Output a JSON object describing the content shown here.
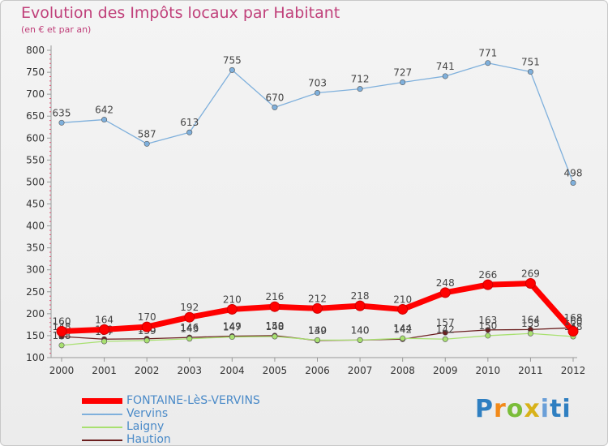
{
  "header": {
    "title": "Evolution des Impôts locaux par Habitant",
    "subtitle": "(en € et par an)"
  },
  "brand": {
    "letters": [
      "P",
      "r",
      "o",
      "x",
      "i",
      "t",
      "i"
    ]
  },
  "chart_data": {
    "type": "line",
    "title": "Evolution des Impôts locaux par Habitant",
    "subtitle": "(en € et par an)",
    "xlabel": "",
    "ylabel": "",
    "x": [
      "2000",
      "2001",
      "2002",
      "2003",
      "2004",
      "2005",
      "2006",
      "2007",
      "2008",
      "2009",
      "2010",
      "2011",
      "2012"
    ],
    "ylim": [
      100,
      800
    ],
    "yticks": [
      100,
      150,
      200,
      250,
      300,
      350,
      400,
      450,
      500,
      550,
      600,
      650,
      700,
      750,
      800
    ],
    "grid": false,
    "legend": "bottom-left",
    "series": [
      {
        "name": "Haution",
        "color": "#6b1f1f",
        "values": [
          148,
          142,
          143,
          146,
          149,
          150,
          139,
          140,
          142,
          157,
          163,
          164,
          168
        ]
      },
      {
        "name": "Laigny",
        "color": "#a8e070",
        "values": [
          128,
          137,
          139,
          143,
          147,
          148,
          140,
          140,
          144,
          142,
          150,
          155,
          148
        ]
      },
      {
        "name": "Vervins",
        "color": "#7fb0dc",
        "values": [
          635,
          642,
          587,
          613,
          755,
          670,
          703,
          712,
          727,
          741,
          771,
          751,
          498
        ]
      },
      {
        "name": "FONTAINE-LèS-VERVINS",
        "color": "#ff0000",
        "values": [
          160,
          164,
          170,
          192,
          210,
          216,
          212,
          218,
          210,
          248,
          266,
          269,
          160
        ]
      }
    ],
    "legend_order": [
      "FONTAINE-LèS-VERVINS",
      "Vervins",
      "Laigny",
      "Haution"
    ]
  }
}
